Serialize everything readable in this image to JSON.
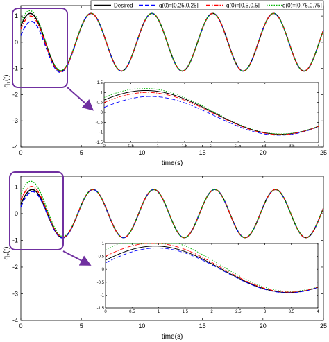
{
  "figure": {
    "legend": [
      {
        "label": "Desired",
        "color": "#000000",
        "dash": "solid"
      },
      {
        "label": "q(0)=[0.25,0.25]",
        "color": "#0000ff",
        "dash": "dashed"
      },
      {
        "label": "q(0)=[0.5,0.5]",
        "color": "#ff0000",
        "dash": "dashdot"
      },
      {
        "label": "q(0)=[0.75,0.75]",
        "color": "#00b400",
        "dash": "dotted"
      }
    ],
    "highlight_color": "#7030a0"
  },
  "chart_data": [
    {
      "type": "line",
      "xlabel": "time(s)",
      "ylabel": "q",
      "ylabel_sub": "1",
      "ylabel_suffix": "(t)",
      "xlim": [
        0,
        25
      ],
      "ylim": [
        -4,
        1.4
      ],
      "xticks": [
        0,
        5,
        10,
        15,
        20,
        25
      ],
      "yticks": [
        -4,
        -3,
        -2,
        -1,
        0,
        1
      ],
      "legend_position": "top-right",
      "desired": {
        "amplitude": 1.1,
        "omega": 1.25,
        "phase": 0.6
      },
      "series": [
        {
          "name": "Desired",
          "initial": null
        },
        {
          "name": "q(0)=[0.25,0.25]",
          "initial": 0.25
        },
        {
          "name": "q(0)=[0.5,0.5]",
          "initial": 0.5
        },
        {
          "name": "q(0)=[0.75,0.75]",
          "initial": 0.75
        }
      ],
      "inset": {
        "xlim": [
          0,
          4
        ],
        "ylim": [
          -1.5,
          1.5
        ],
        "xticks": [
          0,
          0.5,
          1,
          1.5,
          2,
          2.5,
          3,
          3.5,
          4
        ],
        "yticks": [
          -1.5,
          -1,
          -0.5,
          0,
          0.5,
          1,
          1.5
        ]
      }
    },
    {
      "type": "line",
      "xlabel": "time(s)",
      "ylabel": "q",
      "ylabel_sub": "2",
      "ylabel_suffix": "(t)",
      "xlim": [
        0,
        25
      ],
      "ylim": [
        -4,
        1.4
      ],
      "xticks": [
        0,
        5,
        10,
        15,
        20,
        25
      ],
      "yticks": [
        -4,
        -3,
        -2,
        -1,
        0,
        1
      ],
      "desired": {
        "amplitude": 0.9,
        "omega": 1.25,
        "phase": 0.4
      },
      "series": [
        {
          "name": "Desired",
          "initial": null
        },
        {
          "name": "q(0)=[0.25,0.25]",
          "initial": 0.25
        },
        {
          "name": "q(0)=[0.5,0.5]",
          "initial": 0.5
        },
        {
          "name": "q(0)=[0.75,0.75]",
          "initial": 0.75
        }
      ],
      "inset": {
        "xlim": [
          0,
          4
        ],
        "ylim": [
          -1.5,
          1
        ],
        "xticks": [
          0,
          0.5,
          1,
          1.5,
          2,
          2.5,
          3,
          3.5,
          4
        ],
        "yticks": [
          -1.5,
          -1,
          -0.5,
          0,
          0.5,
          1
        ]
      }
    }
  ]
}
